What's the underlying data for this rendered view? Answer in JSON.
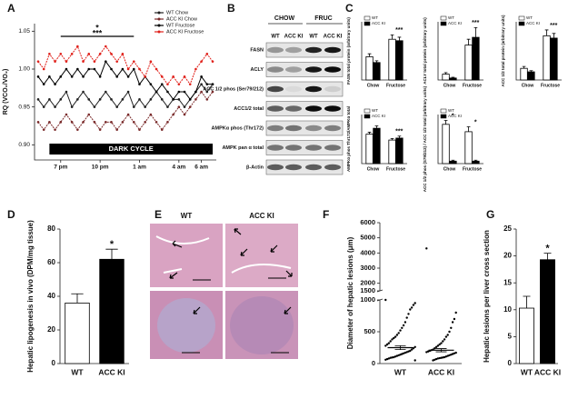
{
  "chart_data": [
    {
      "type": "line",
      "panel": "A",
      "ylabel": "RQ (VCO₂/VO₂)",
      "categories": [
        null,
        null,
        null,
        null,
        "7 pm",
        null,
        null,
        null,
        null,
        null,
        null,
        "10 pm",
        null,
        null,
        null,
        null,
        null,
        null,
        "1 am",
        null,
        null,
        null,
        null,
        null,
        null,
        "4 am",
        null,
        null,
        null,
        "6 am",
        null,
        null
      ],
      "ylim": [
        0.88,
        1.06
      ],
      "yticks": [
        {
          "value": 0.9,
          "label": "0.90"
        },
        {
          "value": 0.95,
          "label": "0.95"
        },
        {
          "value": 1.0,
          "label": "1.00"
        },
        {
          "value": 1.05,
          "label": "1.05"
        }
      ],
      "annotations": [
        "*",
        "***"
      ],
      "band_label": "DARK CYCLE",
      "series": [
        {
          "name": "WT Chow",
          "color": "#222222",
          "values": [
            0.96,
            0.95,
            0.96,
            0.95,
            0.96,
            0.97,
            0.95,
            0.96,
            0.97,
            0.96,
            0.95,
            0.96,
            0.97,
            0.96,
            0.95,
            0.96,
            0.97,
            0.95,
            0.96,
            0.95,
            0.96,
            0.97,
            0.96,
            0.95,
            0.96,
            0.96,
            0.95,
            0.96,
            0.97,
            0.98,
            0.97,
            0.98
          ]
        },
        {
          "name": "ACC KI Chow",
          "color": "#7a2a2a",
          "values": [
            0.93,
            0.92,
            0.93,
            0.92,
            0.93,
            0.94,
            0.93,
            0.92,
            0.93,
            0.94,
            0.93,
            0.92,
            0.93,
            0.93,
            0.92,
            0.93,
            0.94,
            0.93,
            0.92,
            0.93,
            0.94,
            0.93,
            0.92,
            0.93,
            0.94,
            0.95,
            0.94,
            0.95,
            0.96,
            0.97,
            0.96,
            0.97
          ]
        },
        {
          "name": "WT Fructose",
          "color": "#000000",
          "values": [
            0.99,
            0.98,
            0.99,
            0.98,
            0.99,
            1.0,
            0.99,
            1.0,
            0.99,
            1.0,
            1.0,
            0.99,
            1.01,
            1.0,
            0.99,
            1.0,
            0.99,
            1.0,
            0.98,
            0.99,
            0.98,
            0.97,
            0.98,
            0.97,
            0.96,
            0.97,
            0.97,
            0.96,
            0.97,
            0.99,
            0.98,
            0.98
          ]
        },
        {
          "name": "ACC KI Fructose",
          "color": "#e0201a",
          "values": [
            1.01,
            1.0,
            1.02,
            1.01,
            1.02,
            1.01,
            1.02,
            1.03,
            1.01,
            1.02,
            1.01,
            1.02,
            1.03,
            1.02,
            1.01,
            1.02,
            1.0,
            1.01,
            1.0,
            0.99,
            1.01,
            1.0,
            0.99,
            0.98,
            0.99,
            0.98,
            0.99,
            0.98,
            1.0,
            1.01,
            1.02,
            1.01
          ]
        }
      ]
    },
    {
      "type": "bar",
      "panel": "C",
      "ylabel": "FASN total protein (arbitrary units)",
      "categories": [
        "Chow",
        "Fructose"
      ],
      "ylim": [
        0,
        2
      ],
      "annotations": [
        "***"
      ],
      "series": [
        {
          "name": "WT",
          "color": "#ffffff",
          "values": [
            0.8,
            1.4
          ],
          "errors": [
            0.1,
            0.15
          ]
        },
        {
          "name": "ACC KI",
          "color": "#000000",
          "values": [
            0.6,
            1.35
          ],
          "errors": [
            0.06,
            0.12
          ]
        }
      ]
    },
    {
      "type": "bar",
      "ylabel": "ACLY total protein (arbitrary units)",
      "categories": [
        "Chow",
        "Fructose"
      ],
      "ylim": [
        0,
        1.5
      ],
      "annotations": [
        "***"
      ],
      "series": [
        {
          "name": "WT",
          "color": "#ffffff",
          "values": [
            0.15,
            0.9
          ],
          "errors": [
            0.04,
            0.15
          ]
        },
        {
          "name": "ACC KI",
          "color": "#000000",
          "values": [
            0.05,
            1.1
          ],
          "errors": [
            0.02,
            0.25
          ]
        }
      ]
    },
    {
      "type": "bar",
      "ylabel": "ACC 1/2 total protein (arbitrary units)",
      "categories": [
        "Chow",
        "Fructose"
      ],
      "ylim": [
        0,
        2.5
      ],
      "annotations": [
        "***"
      ],
      "series": [
        {
          "name": "WT",
          "color": "#ffffff",
          "values": [
            0.5,
            1.9
          ],
          "errors": [
            0.08,
            0.25
          ]
        },
        {
          "name": "ACC KI",
          "color": "#000000",
          "values": [
            0.35,
            1.8
          ],
          "errors": [
            0.05,
            0.2
          ]
        }
      ]
    },
    {
      "type": "bar",
      "ylabel": "AMPKα phos Thr172/AMPKα total",
      "categories": [
        "Chow",
        "Fructose"
      ],
      "ylim": [
        0,
        2.5
      ],
      "annotations": [
        "***"
      ],
      "series": [
        {
          "name": "WT",
          "color": "#ffffff",
          "values": [
            1.5,
            1.2
          ],
          "errors": [
            0.1,
            0.08
          ]
        },
        {
          "name": "ACC KI",
          "color": "#000000",
          "values": [
            1.8,
            1.3
          ],
          "errors": [
            0.12,
            0.1
          ]
        }
      ]
    },
    {
      "type": "bar",
      "ylabel": "ACC 1/2 phos (S79/212) / ACC 1/2 total (arbitrary units)",
      "categories": [
        "Chow",
        "Fructose"
      ],
      "ylim": [
        0,
        1
      ],
      "annotations": [
        "*",
        "*"
      ],
      "series": [
        {
          "name": "WT",
          "color": "#ffffff",
          "values": [
            0.8,
            0.65
          ],
          "errors": [
            0.08,
            0.1
          ]
        },
        {
          "name": "ACC KI",
          "color": "#000000",
          "values": [
            0.05,
            0.05
          ],
          "errors": [
            0.02,
            0.02
          ]
        }
      ]
    },
    {
      "type": "bar",
      "panel": "D",
      "ylabel": "Hepatic lipogenesis in vivo (DPM/mg tissue)",
      "categories": [
        "WT",
        "ACC KI"
      ],
      "values": [
        36,
        62
      ],
      "errors": [
        5.5,
        6
      ],
      "colors": [
        "#ffffff",
        "#000000"
      ],
      "ylim": [
        0,
        80
      ],
      "yticks": [
        0,
        20,
        40,
        60,
        80
      ],
      "annotations": [
        "*"
      ]
    },
    {
      "type": "strip",
      "panel": "F",
      "ylabel": "Diameter of hepatic lesions (μm)",
      "categories": [
        "WT",
        "ACC KI"
      ],
      "ylim_segments": [
        [
          0,
          1000
        ],
        [
          1500,
          6000
        ]
      ],
      "yticks": [
        0,
        500,
        1000,
        1500,
        2000,
        3000,
        4000,
        5000,
        6000
      ],
      "groups": [
        [
          1000,
          950,
          920,
          880,
          850,
          780,
          720,
          650,
          600,
          560,
          520,
          480,
          450,
          420,
          400,
          380,
          350,
          320,
          300,
          280,
          260,
          240,
          220,
          200,
          190,
          180,
          170,
          160,
          150,
          140,
          130,
          120,
          110,
          100,
          95,
          90,
          80,
          70,
          60,
          50
        ],
        [
          4300,
          800,
          700,
          650,
          560,
          500,
          450,
          420,
          380,
          350,
          320,
          300,
          280,
          260,
          240,
          220,
          210,
          200,
          190,
          180,
          170,
          160,
          150,
          140,
          130,
          120,
          110,
          100,
          95,
          90,
          85,
          80,
          70,
          60,
          50
        ]
      ],
      "means": [
        250,
        210
      ],
      "errors": [
        30,
        25
      ]
    },
    {
      "type": "bar",
      "panel": "G",
      "ylabel": "Hepatic lesions per liver cross section",
      "categories": [
        "WT",
        "ACC KI"
      ],
      "values": [
        10.3,
        19.3
      ],
      "errors": [
        2.2,
        1.2
      ],
      "colors": [
        "#ffffff",
        "#000000"
      ],
      "ylim": [
        0,
        25
      ],
      "yticks": [
        0,
        5,
        10,
        15,
        20,
        25
      ],
      "annotations": [
        "*"
      ]
    }
  ],
  "blot": {
    "panel": "B",
    "groups": [
      "CHOW",
      "FRUC"
    ],
    "lanes": [
      "WT",
      "ACC KI",
      "WT",
      "ACC KI"
    ],
    "rows": [
      "FASN",
      "ACLY",
      "ACC 1/2 phos (Ser79/212)",
      "ACC1/2 total",
      "AMPKα phos (Thr172)",
      "AMPK pan α total",
      "β-Actin"
    ]
  },
  "histology": {
    "panel": "E",
    "columns": [
      "WT",
      "ACC KI"
    ]
  }
}
